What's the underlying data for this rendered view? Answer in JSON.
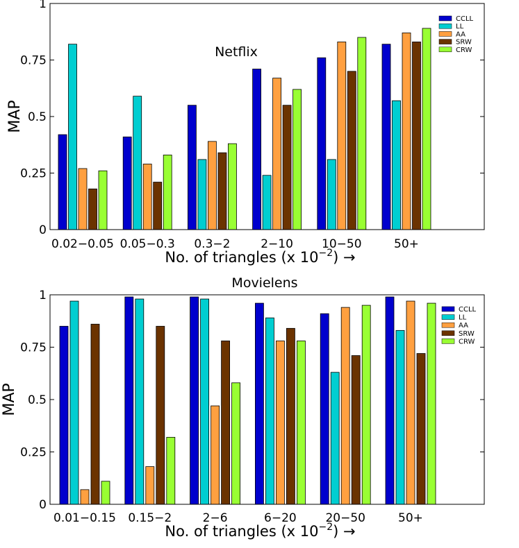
{
  "chart_data": [
    {
      "type": "bar",
      "title": "Netflix",
      "xlabel_prefix": "No. of triangles (x 10",
      "xlabel_exp": "−2",
      "xlabel_suffix": ") →",
      "ylabel": "MAP",
      "ylim": [
        0,
        1
      ],
      "yticks": [
        "0",
        "0.25",
        "0.5",
        "0.75",
        "1"
      ],
      "categories": [
        "0.02−0.05",
        "0.05−0.3",
        "0.3−2",
        "2−10",
        "10−50",
        "50+"
      ],
      "series": [
        {
          "name": "CCLL",
          "color": "#0000CD",
          "values": [
            0.42,
            0.41,
            0.55,
            0.71,
            0.76,
            0.82
          ]
        },
        {
          "name": "LL",
          "color": "#00CED1",
          "values": [
            0.82,
            0.59,
            0.31,
            0.24,
            0.31,
            0.57
          ]
        },
        {
          "name": "AA",
          "color": "#FFA040",
          "values": [
            0.27,
            0.29,
            0.39,
            0.67,
            0.83,
            0.87
          ]
        },
        {
          "name": "SRW",
          "color": "#6B3300",
          "values": [
            0.18,
            0.21,
            0.34,
            0.55,
            0.7,
            0.83
          ]
        },
        {
          "name": "CRW",
          "color": "#99FF33",
          "values": [
            0.26,
            0.33,
            0.38,
            0.62,
            0.85,
            0.89
          ]
        }
      ]
    },
    {
      "type": "bar",
      "title": "Movielens",
      "xlabel_prefix": "No. of triangles (x 10",
      "xlabel_exp": "−2",
      "xlabel_suffix": ") →",
      "ylabel": "MAP",
      "ylim": [
        0,
        1
      ],
      "yticks": [
        "0",
        "0.25",
        "0.5",
        "0.75",
        "1"
      ],
      "categories": [
        "0.01−0.15",
        "0.15−2",
        "2−6",
        "6−20",
        "20−50",
        "50+"
      ],
      "series": [
        {
          "name": "CCLL",
          "color": "#0000CD",
          "values": [
            0.85,
            0.99,
            0.99,
            0.96,
            0.91,
            0.99
          ]
        },
        {
          "name": "LL",
          "color": "#00CED1",
          "values": [
            0.97,
            0.98,
            0.98,
            0.89,
            0.63,
            0.83
          ]
        },
        {
          "name": "AA",
          "color": "#FFA040",
          "values": [
            0.07,
            0.18,
            0.47,
            0.78,
            0.94,
            0.97
          ]
        },
        {
          "name": "SRW",
          "color": "#6B3300",
          "values": [
            0.86,
            0.85,
            0.78,
            0.84,
            0.71,
            0.72
          ]
        },
        {
          "name": "CRW",
          "color": "#99FF33",
          "values": [
            0.11,
            0.32,
            0.58,
            0.78,
            0.95,
            0.96
          ]
        }
      ]
    }
  ]
}
